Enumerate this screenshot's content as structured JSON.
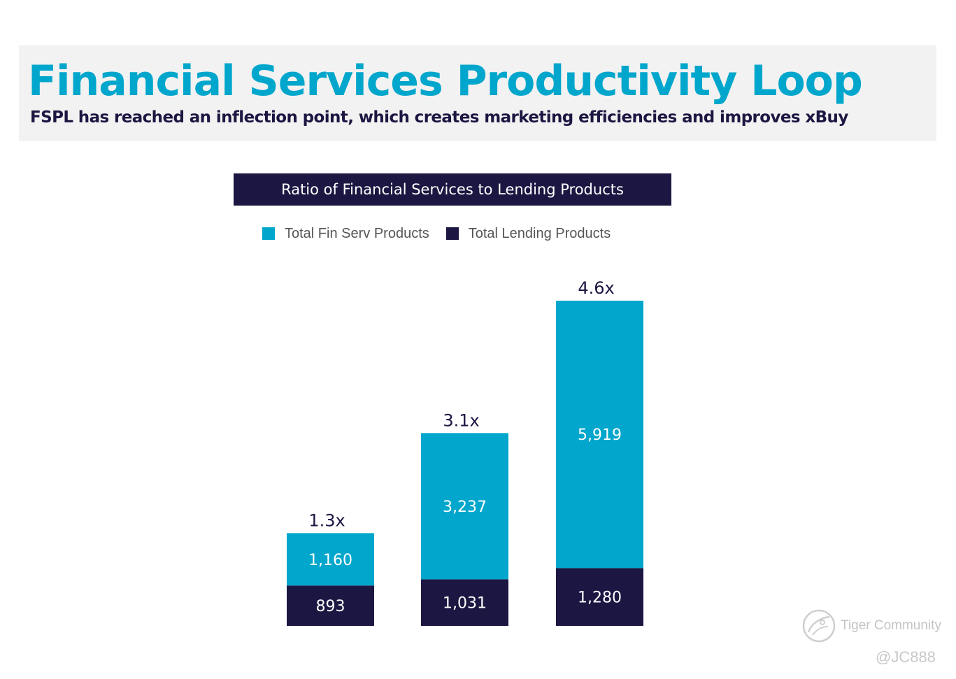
{
  "header": {
    "title": "Financial Services Productivity Loop",
    "subtitle": "FSPL has reached an inflection point, which creates marketing efficiencies and improves xBuy"
  },
  "colors": {
    "accent": "#00a6cb",
    "navy": "#1c1742",
    "band": "#f2f2f2"
  },
  "chart_data": {
    "type": "bar",
    "stacked": true,
    "title": "Ratio of Financial Services to Lending Products",
    "categories": [
      "",
      "",
      ""
    ],
    "series": [
      {
        "name": "Total Lending Products",
        "color": "#1c1742",
        "values": [
          893,
          1031,
          1280
        ],
        "labels": [
          "893",
          "1,031",
          "1,280"
        ]
      },
      {
        "name": "Total Fin Serv Products",
        "color": "#00a6cb",
        "values": [
          1160,
          3237,
          5919
        ],
        "labels": [
          "1,160",
          "3,237",
          "5,919"
        ]
      }
    ],
    "ratio_labels": [
      "1.3x",
      "3.1x",
      "4.6x"
    ],
    "legend": [
      {
        "label": "Total Fin Serv Products",
        "color": "#00a6cb"
      },
      {
        "label": "Total Lending Products",
        "color": "#1c1742"
      }
    ],
    "legend_position": "top",
    "xlabel": "",
    "ylabel": "",
    "grid": false
  },
  "watermark": {
    "brand": "Tiger Community",
    "handle": "@JC888"
  }
}
